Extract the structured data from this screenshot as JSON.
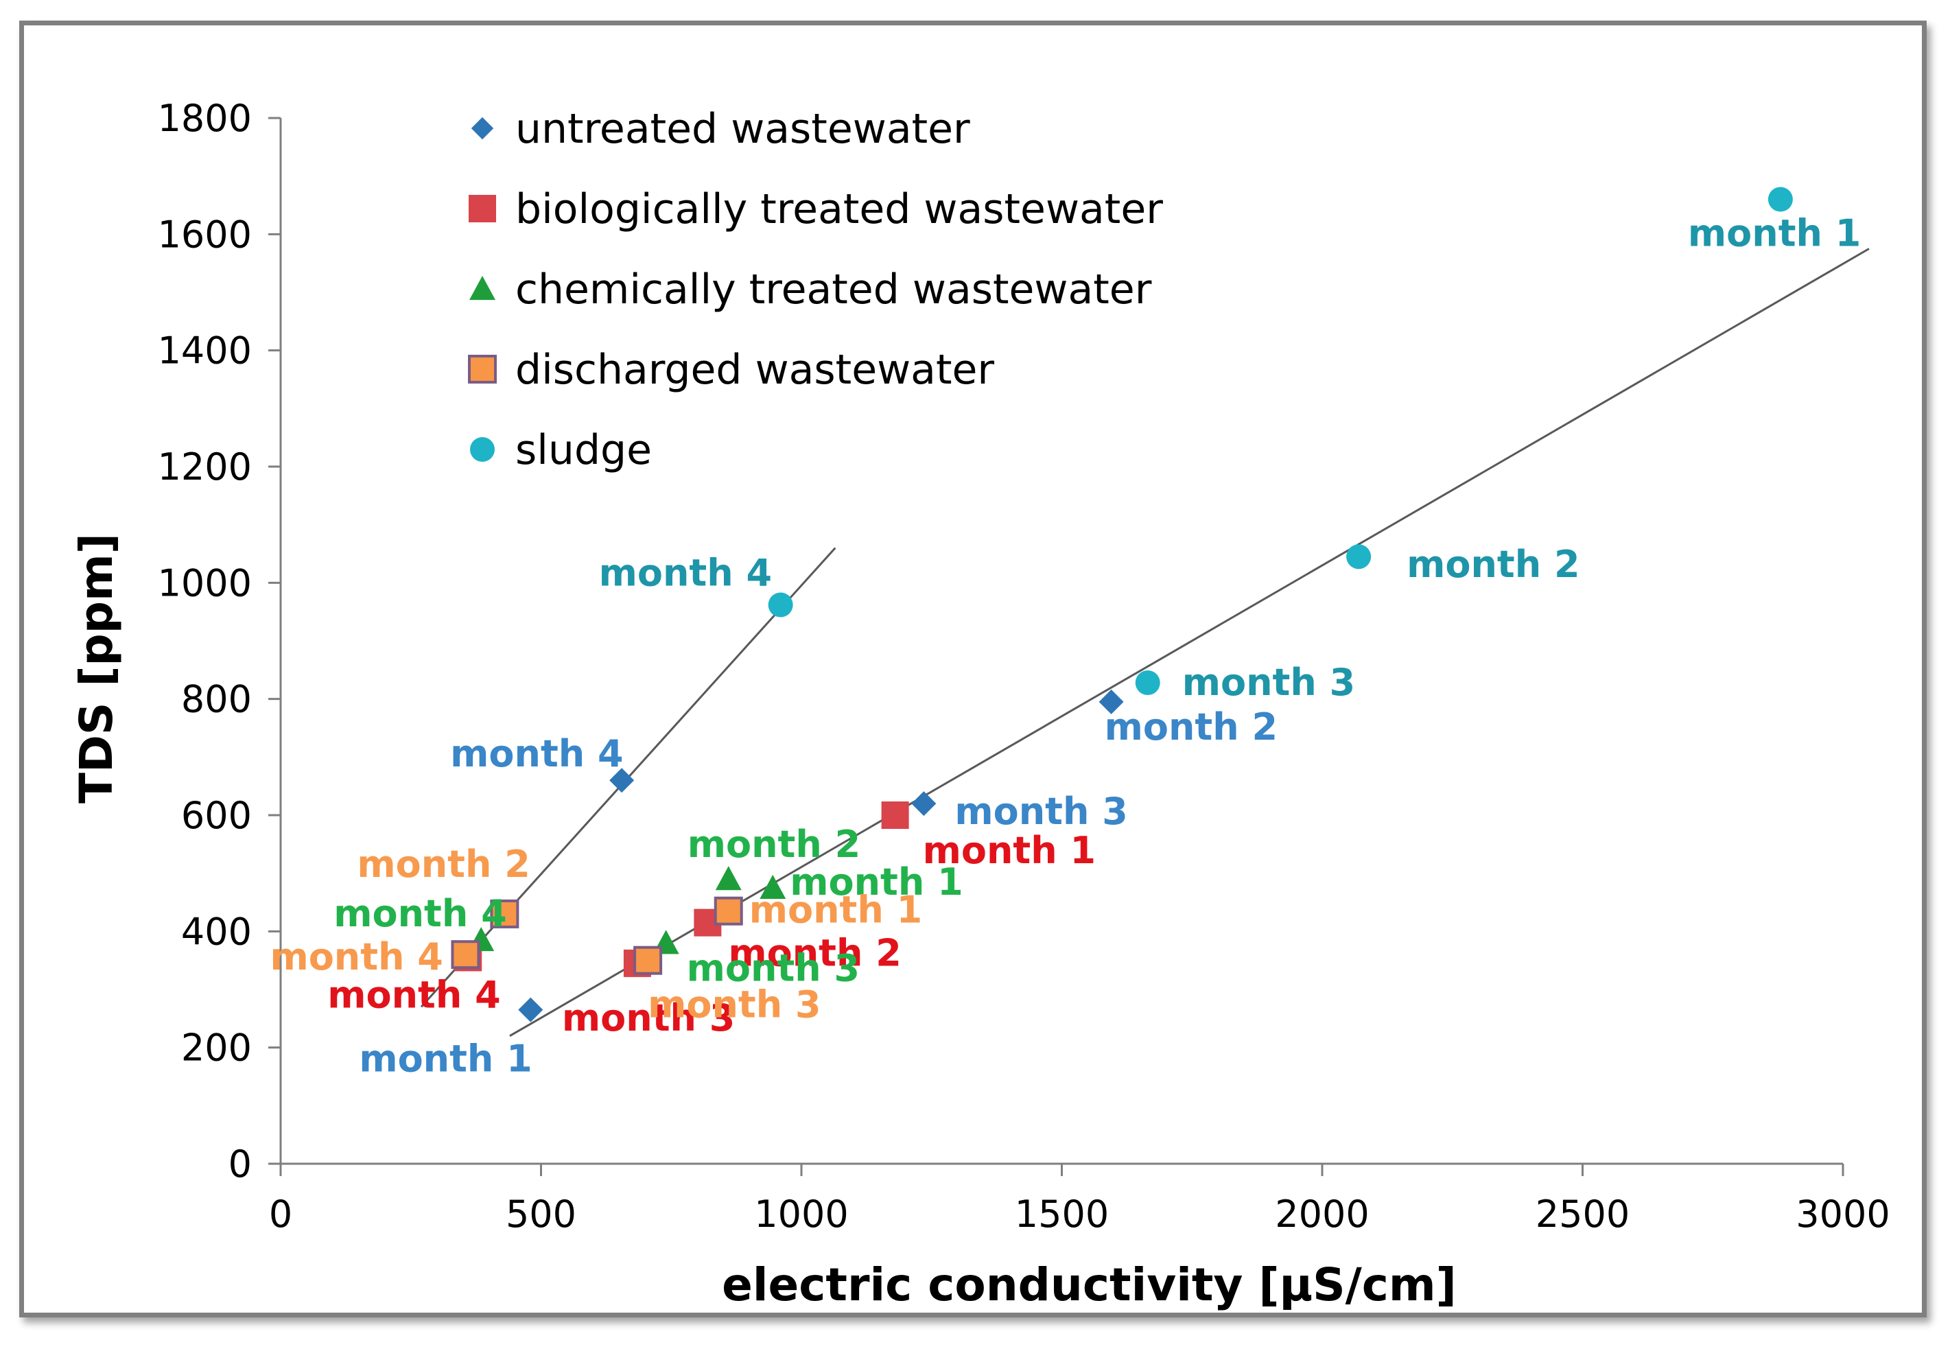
{
  "chart_data": {
    "type": "scatter",
    "title": "",
    "xlabel": "electric conductivity [µS/cm]",
    "ylabel": "TDS [ppm]",
    "xlim": [
      0,
      3000
    ],
    "ylim": [
      0,
      1800
    ],
    "xticks": [
      0,
      500,
      1000,
      1500,
      2000,
      2500,
      3000
    ],
    "yticks": [
      0,
      200,
      400,
      600,
      800,
      1000,
      1200,
      1400,
      1600,
      1800
    ],
    "grid": false,
    "legend_position": "top-left",
    "series": [
      {
        "name": "untreated wastewater",
        "marker": "diamond",
        "color": "#2E75B6",
        "label_color": "#3A86C8",
        "points": [
          {
            "x": 480,
            "y": 265,
            "label": "month 1"
          },
          {
            "x": 1595,
            "y": 795,
            "label": "month 2"
          },
          {
            "x": 1235,
            "y": 620,
            "label": "month 3"
          },
          {
            "x": 655,
            "y": 660,
            "label": "month 4"
          }
        ]
      },
      {
        "name": "biologically treated wastewater",
        "marker": "square",
        "color": "#D9434A",
        "label_color": "#E2121B",
        "points": [
          {
            "x": 1180,
            "y": 600,
            "label": "month 1"
          },
          {
            "x": 820,
            "y": 415,
            "label": "month 2"
          },
          {
            "x": 685,
            "y": 345,
            "label": "month 3"
          },
          {
            "x": 360,
            "y": 355,
            "label": "month 4"
          }
        ]
      },
      {
        "name": "chemically treated wastewater",
        "marker": "triangle",
        "color": "#1E9E3A",
        "label_color": "#22B24C",
        "points": [
          {
            "x": 945,
            "y": 475,
            "label": "month 1"
          },
          {
            "x": 860,
            "y": 490,
            "label": "month 2"
          },
          {
            "x": 740,
            "y": 380,
            "label": "month 3"
          },
          {
            "x": 385,
            "y": 385,
            "label": "month 4"
          }
        ]
      },
      {
        "name": "discharged wastewater",
        "marker": "square-outlined",
        "color": "#F79646",
        "label_color": "#F79A4E",
        "points": [
          {
            "x": 860,
            "y": 435,
            "label": "month 1"
          },
          {
            "x": 430,
            "y": 430,
            "label": "month 2"
          },
          {
            "x": 705,
            "y": 350,
            "label": "month 3"
          },
          {
            "x": 355,
            "y": 360,
            "label": "month 4"
          }
        ]
      },
      {
        "name": "sludge",
        "marker": "circle",
        "color": "#1FB3C8",
        "label_color": "#1E95A8",
        "points": [
          {
            "x": 2880,
            "y": 1660,
            "label": "month 1"
          },
          {
            "x": 2070,
            "y": 1045,
            "label": "month 2"
          },
          {
            "x": 1665,
            "y": 828,
            "label": "month 3"
          },
          {
            "x": 960,
            "y": 962,
            "label": "month 4"
          }
        ]
      }
    ],
    "trendlines": [
      {
        "x1": 270,
        "y1": 270,
        "x2": 1065,
        "y2": 1060
      },
      {
        "x1": 440,
        "y1": 220,
        "x2": 3050,
        "y2": 1575
      }
    ]
  }
}
